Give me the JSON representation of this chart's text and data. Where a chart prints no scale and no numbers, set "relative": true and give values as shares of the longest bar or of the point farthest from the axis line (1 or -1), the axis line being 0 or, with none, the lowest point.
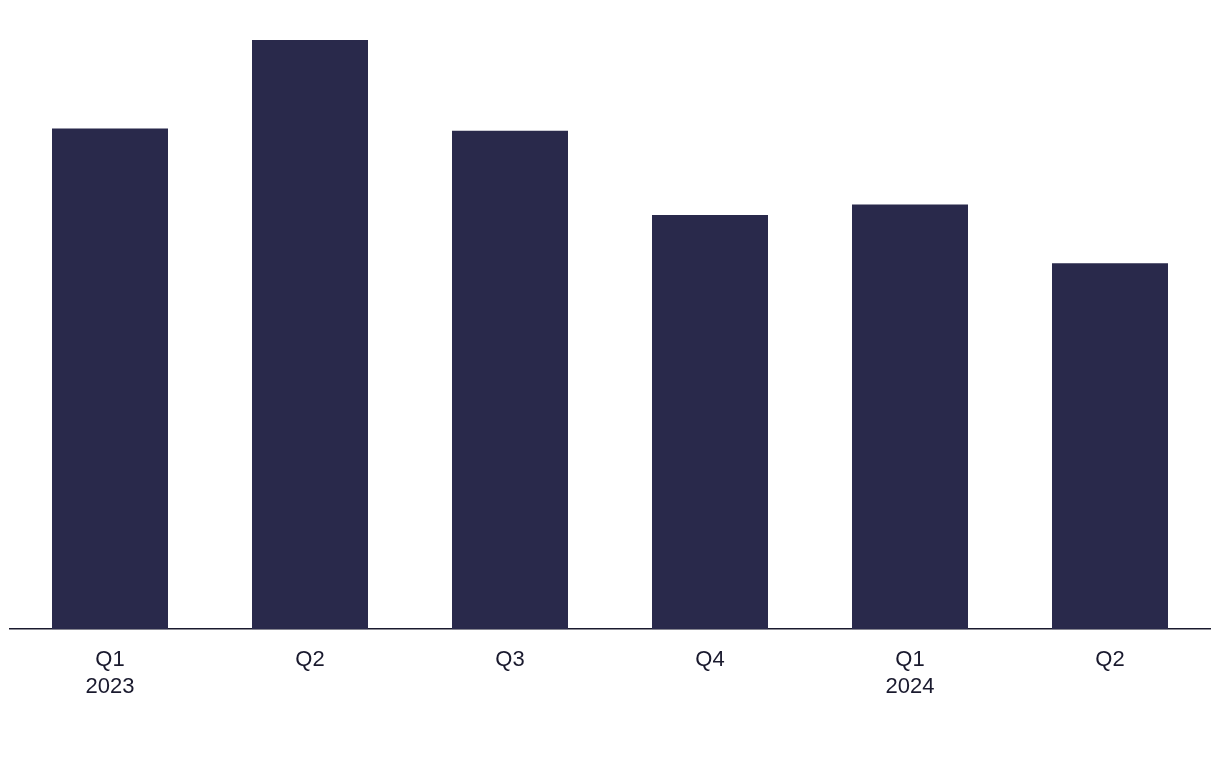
{
  "chart_data": {
    "type": "bar",
    "relative": true,
    "categories": [
      "Q1\n2023",
      "Q2",
      "Q3",
      "Q4",
      "Q1\n2024",
      "Q2"
    ],
    "values": [
      0.85,
      1,
      0.846,
      0.703,
      0.721,
      0.621
    ],
    "color": "#29294b",
    "grid": false,
    "legend": false
  }
}
